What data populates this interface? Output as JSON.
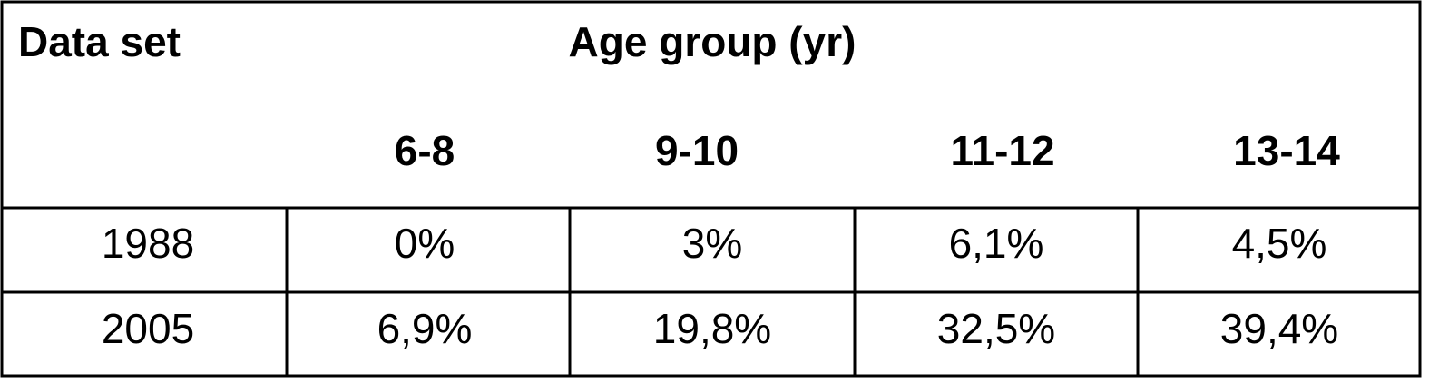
{
  "table": {
    "header": {
      "row_label": "Data set",
      "group": "Age group (yr)",
      "columns": [
        "6-8",
        "9-10",
        "11-12",
        "13-14"
      ]
    },
    "rows": [
      [
        "1988",
        "0%",
        "3%",
        "6,1%",
        "4,5%"
      ],
      [
        "2005",
        "6,9%",
        "19,8%",
        "32,5%",
        "39,4%"
      ]
    ]
  }
}
